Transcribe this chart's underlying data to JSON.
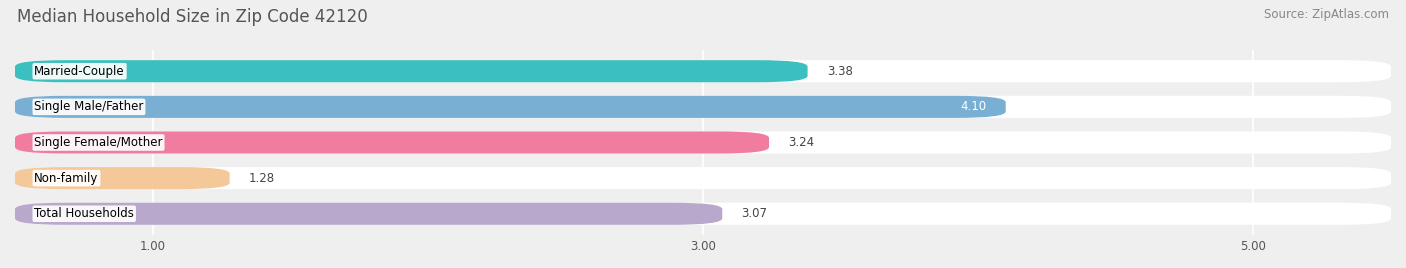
{
  "title": "Median Household Size in Zip Code 42120",
  "source": "Source: ZipAtlas.com",
  "categories": [
    "Married-Couple",
    "Single Male/Father",
    "Single Female/Mother",
    "Non-family",
    "Total Households"
  ],
  "values": [
    3.38,
    4.1,
    3.24,
    1.28,
    3.07
  ],
  "bar_colors": [
    "#3bbfbf",
    "#7aafd4",
    "#f07ca0",
    "#f5c89a",
    "#b8a8cc"
  ],
  "value_inside": [
    false,
    true,
    false,
    false,
    false
  ],
  "xlim": [
    0.5,
    5.5
  ],
  "xticks": [
    1.0,
    3.0,
    5.0
  ],
  "xtick_labels": [
    "1.00",
    "3.00",
    "5.00"
  ],
  "background_color": "#efefef",
  "bar_background_color": "#ffffff",
  "title_fontsize": 12,
  "source_fontsize": 8.5,
  "label_fontsize": 8.5,
  "value_fontsize": 8.5
}
